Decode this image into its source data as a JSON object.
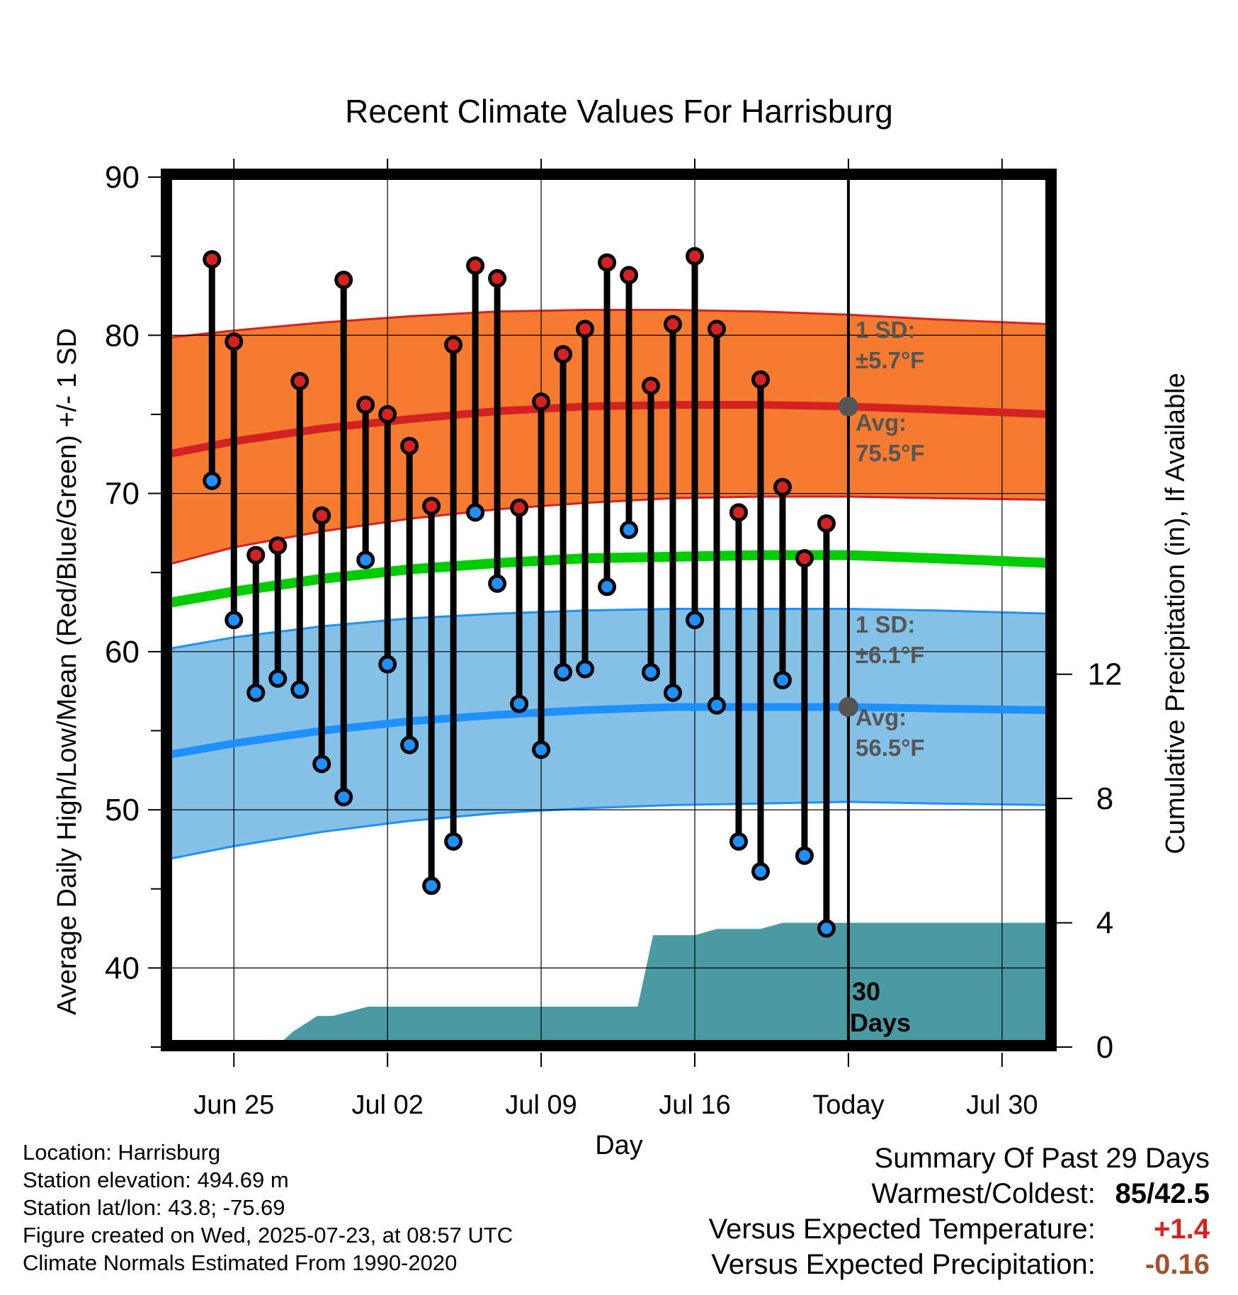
{
  "chart_data": {
    "type": "line",
    "title": "Recent Climate Values For Harrisburg",
    "xlabel": "Day",
    "ylabel": "Average Daily High/Low/Mean (Red/Blue/Green) +/- 1 SD",
    "y2label": "Cumulative Precipitation (in), If Available",
    "ylim": [
      35,
      90
    ],
    "y2lim": [
      0,
      28
    ],
    "yticks": [
      40,
      50,
      60,
      70,
      80,
      90
    ],
    "y2ticks": [
      0,
      4,
      8,
      12
    ],
    "xlim": [
      -3.3,
      37.2
    ],
    "xticks": [
      {
        "day": 0,
        "label": "Jun 25"
      },
      {
        "day": 7,
        "label": "Jul 02"
      },
      {
        "day": 14,
        "label": "Jul 09"
      },
      {
        "day": 21,
        "label": "Jul 16"
      },
      {
        "day": 28,
        "label": "Today"
      },
      {
        "day": 35,
        "label": "Jul 30"
      }
    ],
    "grid": true,
    "days": [
      -1,
      0,
      1,
      2,
      3,
      4,
      5,
      6,
      7,
      8,
      9,
      10,
      11,
      12,
      13,
      14,
      15,
      16,
      17,
      18,
      19,
      20,
      21,
      22,
      23,
      24,
      25,
      26,
      27
    ],
    "highs": [
      84.8,
      79.6,
      66.1,
      66.7,
      77.1,
      68.6,
      83.5,
      75.6,
      75.0,
      73.0,
      69.2,
      79.4,
      84.4,
      83.6,
      69.1,
      75.8,
      78.8,
      80.4,
      84.6,
      83.8,
      76.8,
      80.7,
      85.0,
      80.4,
      68.8,
      77.2,
      70.4,
      65.9,
      68.1
    ],
    "lows": [
      70.8,
      62.0,
      57.4,
      58.3,
      57.6,
      52.9,
      50.8,
      65.8,
      59.2,
      54.1,
      45.2,
      48.0,
      68.8,
      64.3,
      56.7,
      53.8,
      58.7,
      58.9,
      64.1,
      67.7,
      58.7,
      57.4,
      62.0,
      56.6,
      48.0,
      46.1,
      58.2,
      47.1,
      42.5
    ],
    "normal_high": {
      "x": [
        -3.3,
        0,
        4,
        8,
        12,
        16,
        20,
        24,
        28,
        32,
        37.2
      ],
      "mean": [
        72.4,
        73.3,
        74.1,
        74.7,
        75.2,
        75.5,
        75.6,
        75.6,
        75.5,
        75.3,
        75.0
      ],
      "upper": [
        79.8,
        80.3,
        80.8,
        81.2,
        81.5,
        81.6,
        81.6,
        81.5,
        81.3,
        81.0,
        80.7
      ],
      "lower": [
        65.4,
        66.6,
        67.6,
        68.4,
        69.0,
        69.4,
        69.7,
        69.8,
        69.8,
        69.7,
        69.6
      ]
    },
    "normal_mean": {
      "x": [
        -3.3,
        0,
        4,
        8,
        12,
        16,
        20,
        24,
        28,
        32,
        37.2
      ],
      "values": [
        63.0,
        63.8,
        64.6,
        65.2,
        65.6,
        65.9,
        66.0,
        66.1,
        66.1,
        65.9,
        65.6
      ]
    },
    "normal_low": {
      "x": [
        -3.3,
        0,
        4,
        8,
        12,
        16,
        20,
        24,
        28,
        32,
        37.2
      ],
      "mean": [
        53.4,
        54.2,
        55.0,
        55.6,
        56.0,
        56.3,
        56.5,
        56.5,
        56.5,
        56.4,
        56.3
      ],
      "upper": [
        60.1,
        60.9,
        61.6,
        62.1,
        62.4,
        62.6,
        62.7,
        62.7,
        62.7,
        62.6,
        62.4
      ],
      "lower": [
        46.8,
        47.7,
        48.6,
        49.3,
        49.8,
        50.1,
        50.3,
        50.4,
        50.5,
        50.4,
        50.3
      ]
    },
    "precip": {
      "x": [
        -3.3,
        1.9,
        2.7,
        3.8,
        4.5,
        6.1,
        7.0,
        8.0,
        10.0,
        12.0,
        13.0,
        14.0,
        15.0,
        16.0,
        17.0,
        18.0,
        18.4,
        19.1,
        21.0,
        22.0,
        24.0,
        25.0,
        27.0,
        28.0,
        37.2
      ],
      "values": [
        0,
        0,
        0.5,
        1.0,
        1.0,
        1.3,
        1.3,
        1.3,
        1.3,
        1.3,
        1.3,
        1.3,
        1.3,
        1.3,
        1.3,
        1.3,
        1.3,
        3.6,
        3.6,
        3.8,
        3.8,
        4.0,
        4.0,
        4.0,
        4.0
      ]
    },
    "today_day": 28,
    "annotations": {
      "high_sd": "1 SD:",
      "high_sd_value": "±5.7°F",
      "high_avg": "Avg:",
      "high_avg_value": "75.5°F",
      "low_sd": "1 SD:",
      "low_sd_value": "±6.1°F",
      "low_avg": "Avg:",
      "low_avg_value": "56.5°F",
      "window_num": "30",
      "window_unit": "Days"
    },
    "colors": {
      "high_band": "#f47b30",
      "high_line": "#d42222",
      "low_band": "#85c1e6",
      "low_line": "#1e90ff",
      "mean_line": "#00cc00",
      "precip": "#4a9aa3",
      "high_marker": "#d42222",
      "low_marker": "#1e90ff",
      "annotation": "#555555"
    }
  },
  "footer": {
    "location": "Location: Harrisburg",
    "elevation": "Station elevation: 494.69 m",
    "latlon": "Station lat/lon: 43.8; -75.69",
    "created": "Figure created on Wed, 2025-07-23, at 08:57 UTC",
    "normals": "Climate Normals Estimated From 1990-2020"
  },
  "summary": {
    "heading": "Summary Of Past 29 Days",
    "warm_label": "Warmest/Coldest:",
    "warm_value": "85/42.5",
    "temp_label": "Versus Expected Temperature:",
    "temp_value": "+1.4",
    "temp_color": "#d42222",
    "precip_label": "Versus Expected Precipitation:",
    "precip_value": "-0.16",
    "precip_color": "#a0522d"
  }
}
